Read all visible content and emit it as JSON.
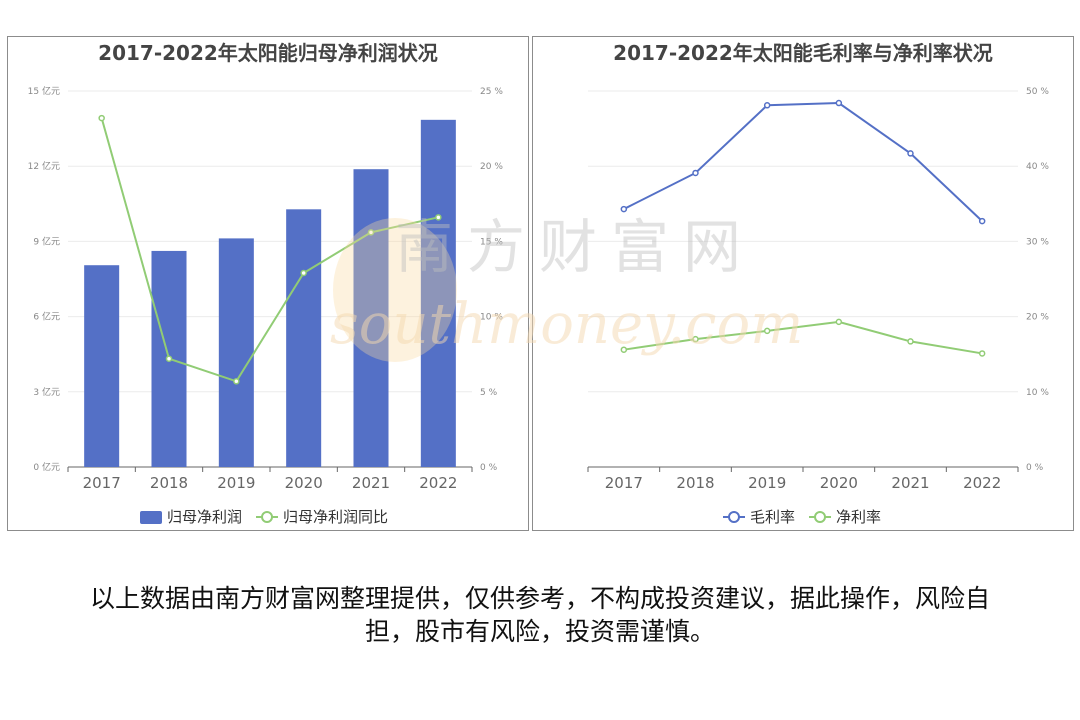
{
  "chart_data": [
    {
      "type": "bar",
      "title": "2017-2022年太阳能归母净利润状况",
      "categories": [
        "2017",
        "2018",
        "2019",
        "2020",
        "2021",
        "2022"
      ],
      "y_left": {
        "ylim": [
          0,
          15
        ],
        "ticks": [
          "0 亿元",
          "3 亿元",
          "6 亿元",
          "9 亿元",
          "12 亿元",
          "15 亿元"
        ]
      },
      "y_right": {
        "ylim": [
          0,
          25
        ],
        "ticks": [
          "0 %",
          "5 %",
          "10 %",
          "15 %",
          "20 %",
          "25 %"
        ]
      },
      "series": [
        {
          "name": "归母净利润",
          "kind": "bar",
          "axis": "left",
          "color": "#5470c6",
          "values": [
            8.05,
            8.62,
            9.12,
            10.28,
            11.88,
            13.85
          ]
        },
        {
          "name": "归母净利润同比",
          "kind": "line",
          "axis": "right",
          "color": "#91cc75",
          "values": [
            23.2,
            7.2,
            5.7,
            12.9,
            15.6,
            16.6
          ]
        }
      ],
      "legend": "bottom"
    },
    {
      "type": "line",
      "title": "2017-2022年太阳能毛利率与净利率状况",
      "categories": [
        "2017",
        "2018",
        "2019",
        "2020",
        "2021",
        "2022"
      ],
      "y_right": {
        "ylim": [
          0,
          50
        ],
        "ticks": [
          "0 %",
          "10 %",
          "20 %",
          "30 %",
          "40 %",
          "50 %"
        ]
      },
      "series": [
        {
          "name": "毛利率",
          "kind": "line",
          "axis": "right",
          "color": "#5470c6",
          "values": [
            34.3,
            39.1,
            48.1,
            48.4,
            41.7,
            32.7
          ]
        },
        {
          "name": "净利率",
          "kind": "line",
          "axis": "right",
          "color": "#91cc75",
          "values": [
            15.6,
            17.0,
            18.1,
            19.3,
            16.7,
            15.1
          ]
        }
      ],
      "legend": "bottom"
    }
  ],
  "watermark": {
    "line1": "南方财富网",
    "line2": "southmoney.com"
  },
  "footer": {
    "text": "以上数据由南方财富网整理提供，仅供参考，不构成投资建议，据此操作，风险自担，股市有风险，投资需谨慎。"
  }
}
